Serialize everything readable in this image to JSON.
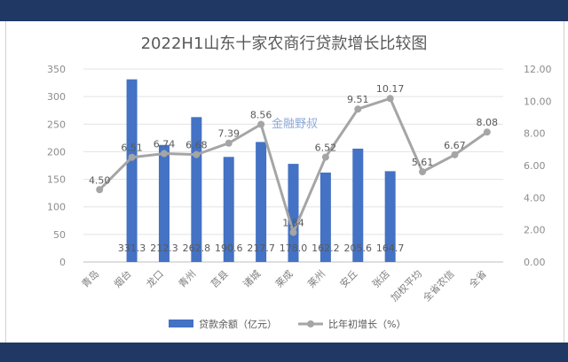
{
  "chart_data": {
    "type": "bar-line",
    "title": "2022H1山东十家农商行贷款增长比较图",
    "watermark": "金融野叔",
    "categories": [
      "青岛",
      "烟台",
      "龙口",
      "青州",
      "莒县",
      "诸城",
      "莱成",
      "莱州",
      "安丘",
      "张店",
      "加权平均",
      "全省农信",
      "全省"
    ],
    "series": [
      {
        "name": "贷款余额（亿元）",
        "type": "bar",
        "axis": "left",
        "color": "#4472c4",
        "values": [
          null,
          331.3,
          212.3,
          262.8,
          190.6,
          217.7,
          178.0,
          162.2,
          205.6,
          164.7,
          null,
          null,
          null
        ],
        "labels": [
          "",
          "331.3",
          "212.3",
          "262.8",
          "190.6",
          "217.7",
          "178.0",
          "162.2",
          "205.6",
          "164.7",
          "",
          "",
          ""
        ]
      },
      {
        "name": "比年初增长（%）",
        "type": "line",
        "axis": "right",
        "color": "#a5a5a5",
        "values": [
          4.5,
          6.51,
          6.74,
          6.68,
          7.39,
          8.56,
          1.84,
          6.52,
          9.51,
          10.17,
          5.61,
          6.67,
          8.08
        ],
        "labels": [
          "4.50",
          "6.51",
          "6.74",
          "6.68",
          "7.39",
          "8.56",
          "1.84",
          "6.52",
          "9.51",
          "10.17",
          "5.61",
          "6.67",
          "8.08"
        ]
      }
    ],
    "left_axis": {
      "min": 0,
      "max": 350,
      "ticks": [
        "0",
        "50",
        "100",
        "150",
        "200",
        "250",
        "300",
        "350"
      ]
    },
    "right_axis": {
      "min": 0,
      "max": 12,
      "ticks": [
        "0.00",
        "2.00",
        "4.00",
        "6.00",
        "8.00",
        "10.00",
        "12.00"
      ]
    },
    "grid": true,
    "legend_position": "bottom"
  }
}
